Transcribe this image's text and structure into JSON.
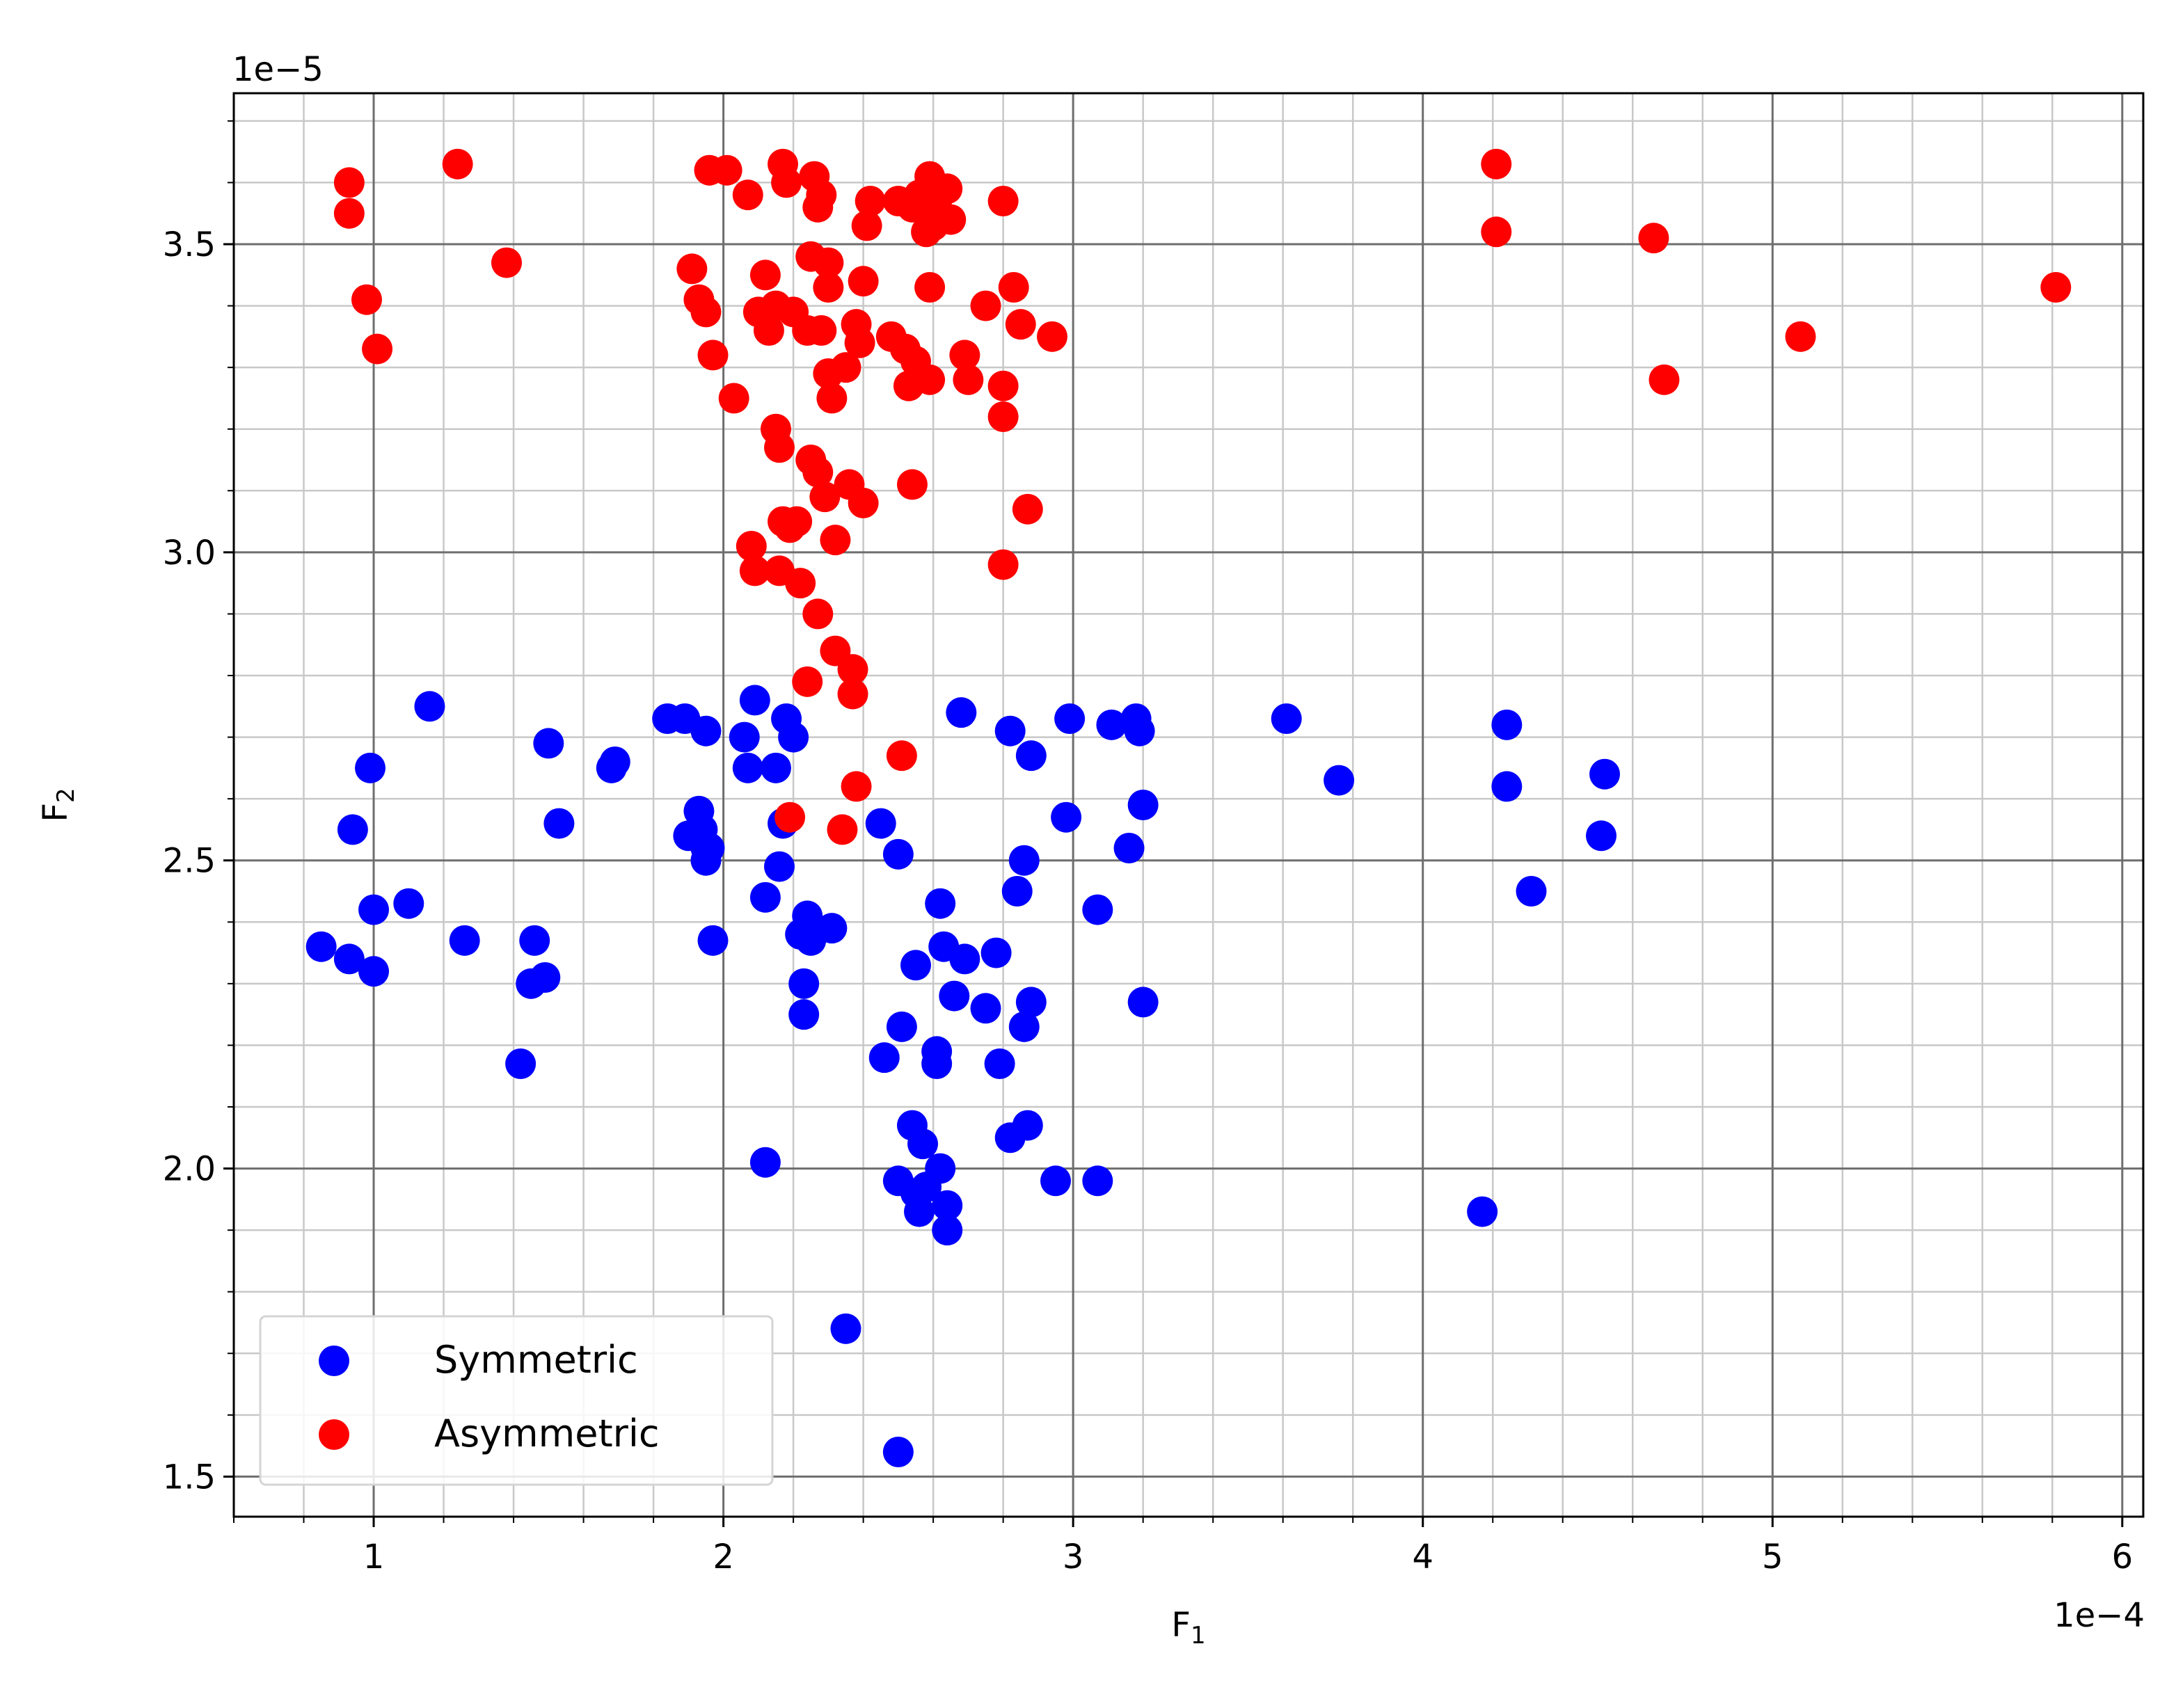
{
  "chart_data": {
    "type": "scatter",
    "title": "",
    "xlabel_main": "F",
    "xlabel_sub": "1",
    "ylabel_main": "F",
    "ylabel_sub": "2",
    "x_offset_text": "1e−4",
    "y_offset_text": "1e−5",
    "xlim": [
      0.6,
      6.06
    ],
    "ylim": [
      1.435,
      3.745
    ],
    "x_ticks": [
      1,
      2,
      3,
      4,
      5,
      6
    ],
    "x_tick_labels": [
      "1",
      "2",
      "3",
      "4",
      "5",
      "6"
    ],
    "y_ticks": [
      1.5,
      2.0,
      2.5,
      3.0,
      3.5
    ],
    "y_tick_labels": [
      "1.5",
      "2.0",
      "2.5",
      "3.0",
      "3.5"
    ],
    "x_minor_step": 0.2,
    "y_minor_step": 0.1,
    "grid": true,
    "legend_position": "lower-left",
    "series": [
      {
        "name": "Symmetric",
        "color": "#0000ff",
        "points": [
          [
            0.85,
            2.36
          ],
          [
            0.93,
            2.34
          ],
          [
            1.0,
            2.32
          ],
          [
            1.0,
            2.42
          ],
          [
            0.94,
            2.55
          ],
          [
            0.99,
            2.65
          ],
          [
            1.1,
            2.43
          ],
          [
            1.16,
            2.75
          ],
          [
            1.26,
            2.37
          ],
          [
            1.42,
            2.17
          ],
          [
            1.45,
            2.3
          ],
          [
            1.49,
            2.31
          ],
          [
            1.46,
            2.37
          ],
          [
            1.5,
            2.69
          ],
          [
            1.53,
            2.56
          ],
          [
            1.68,
            2.65
          ],
          [
            1.69,
            2.66
          ],
          [
            1.84,
            2.73
          ],
          [
            1.89,
            2.73
          ],
          [
            1.95,
            2.71
          ],
          [
            1.9,
            2.54
          ],
          [
            1.93,
            2.58
          ],
          [
            1.94,
            2.55
          ],
          [
            1.95,
            2.52
          ],
          [
            1.96,
            2.52
          ],
          [
            1.95,
            2.5
          ],
          [
            1.97,
            2.37
          ],
          [
            2.06,
            2.7
          ],
          [
            2.07,
            2.65
          ],
          [
            2.09,
            2.76
          ],
          [
            2.12,
            2.44
          ],
          [
            2.12,
            2.01
          ],
          [
            2.15,
            2.65
          ],
          [
            2.16,
            2.49
          ],
          [
            2.17,
            2.56
          ],
          [
            2.18,
            2.73
          ],
          [
            2.2,
            2.7
          ],
          [
            2.22,
            2.38
          ],
          [
            2.23,
            2.3
          ],
          [
            2.23,
            2.25
          ],
          [
            2.24,
            2.41
          ],
          [
            2.25,
            2.37
          ],
          [
            2.31,
            2.39
          ],
          [
            2.35,
            1.74
          ],
          [
            2.45,
            2.56
          ],
          [
            2.46,
            2.18
          ],
          [
            2.5,
            1.54
          ],
          [
            2.5,
            1.98
          ],
          [
            2.5,
            2.51
          ],
          [
            2.51,
            2.23
          ],
          [
            2.54,
            2.07
          ],
          [
            2.55,
            2.33
          ],
          [
            2.55,
            1.96
          ],
          [
            2.56,
            1.93
          ],
          [
            2.57,
            2.04
          ],
          [
            2.58,
            1.97
          ],
          [
            2.61,
            2.19
          ],
          [
            2.61,
            2.17
          ],
          [
            2.62,
            2.43
          ],
          [
            2.62,
            2.0
          ],
          [
            2.63,
            2.36
          ],
          [
            2.64,
            1.94
          ],
          [
            2.64,
            1.9
          ],
          [
            2.66,
            2.28
          ],
          [
            2.68,
            2.74
          ],
          [
            2.69,
            2.34
          ],
          [
            2.75,
            2.26
          ],
          [
            2.78,
            2.35
          ],
          [
            2.79,
            2.17
          ],
          [
            2.82,
            2.71
          ],
          [
            2.82,
            2.05
          ],
          [
            2.84,
            2.45
          ],
          [
            2.86,
            2.5
          ],
          [
            2.86,
            2.23
          ],
          [
            2.87,
            2.07
          ],
          [
            2.88,
            2.27
          ],
          [
            2.88,
            2.67
          ],
          [
            2.95,
            1.98
          ],
          [
            2.98,
            2.57
          ],
          [
            2.99,
            2.73
          ],
          [
            3.07,
            2.42
          ],
          [
            3.07,
            1.98
          ],
          [
            3.11,
            2.72
          ],
          [
            3.16,
            2.52
          ],
          [
            3.18,
            2.73
          ],
          [
            3.19,
            2.71
          ],
          [
            3.2,
            2.27
          ],
          [
            3.2,
            2.59
          ],
          [
            3.61,
            2.73
          ],
          [
            3.76,
            2.63
          ],
          [
            4.17,
            1.93
          ],
          [
            4.24,
            2.72
          ],
          [
            4.24,
            2.62
          ],
          [
            4.31,
            2.45
          ],
          [
            4.51,
            2.54
          ],
          [
            4.52,
            2.64
          ]
        ]
      },
      {
        "name": "Asymmetric",
        "color": "#ff0000",
        "points": [
          [
            0.93,
            3.6
          ],
          [
            0.93,
            3.55
          ],
          [
            0.98,
            3.41
          ],
          [
            1.01,
            3.33
          ],
          [
            1.24,
            3.63
          ],
          [
            1.38,
            3.47
          ],
          [
            1.91,
            3.46
          ],
          [
            1.93,
            3.41
          ],
          [
            1.95,
            3.39
          ],
          [
            1.96,
            3.62
          ],
          [
            1.97,
            3.32
          ],
          [
            2.01,
            3.62
          ],
          [
            2.03,
            3.25
          ],
          [
            2.07,
            3.58
          ],
          [
            2.08,
            3.01
          ],
          [
            2.09,
            2.97
          ],
          [
            2.1,
            3.39
          ],
          [
            2.12,
            3.45
          ],
          [
            2.13,
            3.36
          ],
          [
            2.15,
            3.4
          ],
          [
            2.15,
            3.2
          ],
          [
            2.16,
            3.17
          ],
          [
            2.16,
            2.97
          ],
          [
            2.17,
            3.63
          ],
          [
            2.17,
            3.05
          ],
          [
            2.18,
            3.6
          ],
          [
            2.19,
            2.57
          ],
          [
            2.19,
            3.04
          ],
          [
            2.2,
            3.39
          ],
          [
            2.21,
            3.05
          ],
          [
            2.22,
            2.95
          ],
          [
            2.24,
            2.79
          ],
          [
            2.24,
            3.36
          ],
          [
            2.25,
            3.15
          ],
          [
            2.25,
            3.48
          ],
          [
            2.26,
            3.61
          ],
          [
            2.27,
            3.13
          ],
          [
            2.27,
            3.56
          ],
          [
            2.27,
            2.9
          ],
          [
            2.28,
            3.36
          ],
          [
            2.28,
            3.58
          ],
          [
            2.29,
            3.09
          ],
          [
            2.3,
            3.47
          ],
          [
            2.3,
            3.43
          ],
          [
            2.3,
            3.29
          ],
          [
            2.31,
            3.25
          ],
          [
            2.32,
            3.02
          ],
          [
            2.32,
            2.84
          ],
          [
            2.34,
            2.55
          ],
          [
            2.35,
            3.3
          ],
          [
            2.36,
            3.11
          ],
          [
            2.37,
            2.77
          ],
          [
            2.37,
            2.81
          ],
          [
            2.38,
            3.37
          ],
          [
            2.38,
            2.62
          ],
          [
            2.39,
            3.34
          ],
          [
            2.4,
            3.08
          ],
          [
            2.4,
            3.44
          ],
          [
            2.41,
            3.53
          ],
          [
            2.42,
            3.57
          ],
          [
            2.48,
            3.35
          ],
          [
            2.5,
            3.57
          ],
          [
            2.51,
            2.67
          ],
          [
            2.52,
            3.33
          ],
          [
            2.53,
            3.27
          ],
          [
            2.54,
            3.11
          ],
          [
            2.54,
            3.56
          ],
          [
            2.55,
            3.31
          ],
          [
            2.56,
            3.58
          ],
          [
            2.58,
            3.52
          ],
          [
            2.59,
            3.61
          ],
          [
            2.59,
            3.28
          ],
          [
            2.59,
            3.43
          ],
          [
            2.6,
            3.53
          ],
          [
            2.61,
            3.57
          ],
          [
            2.64,
            3.59
          ],
          [
            2.65,
            3.54
          ],
          [
            2.69,
            3.32
          ],
          [
            2.7,
            3.28
          ],
          [
            2.75,
            3.4
          ],
          [
            2.8,
            3.57
          ],
          [
            2.8,
            2.98
          ],
          [
            2.8,
            3.27
          ],
          [
            2.8,
            3.22
          ],
          [
            2.83,
            3.43
          ],
          [
            2.85,
            3.37
          ],
          [
            2.87,
            3.07
          ],
          [
            2.94,
            3.35
          ],
          [
            4.21,
            3.63
          ],
          [
            4.21,
            3.52
          ],
          [
            4.66,
            3.51
          ],
          [
            4.69,
            3.28
          ],
          [
            5.08,
            3.35
          ],
          [
            5.81,
            3.43
          ]
        ]
      }
    ]
  }
}
